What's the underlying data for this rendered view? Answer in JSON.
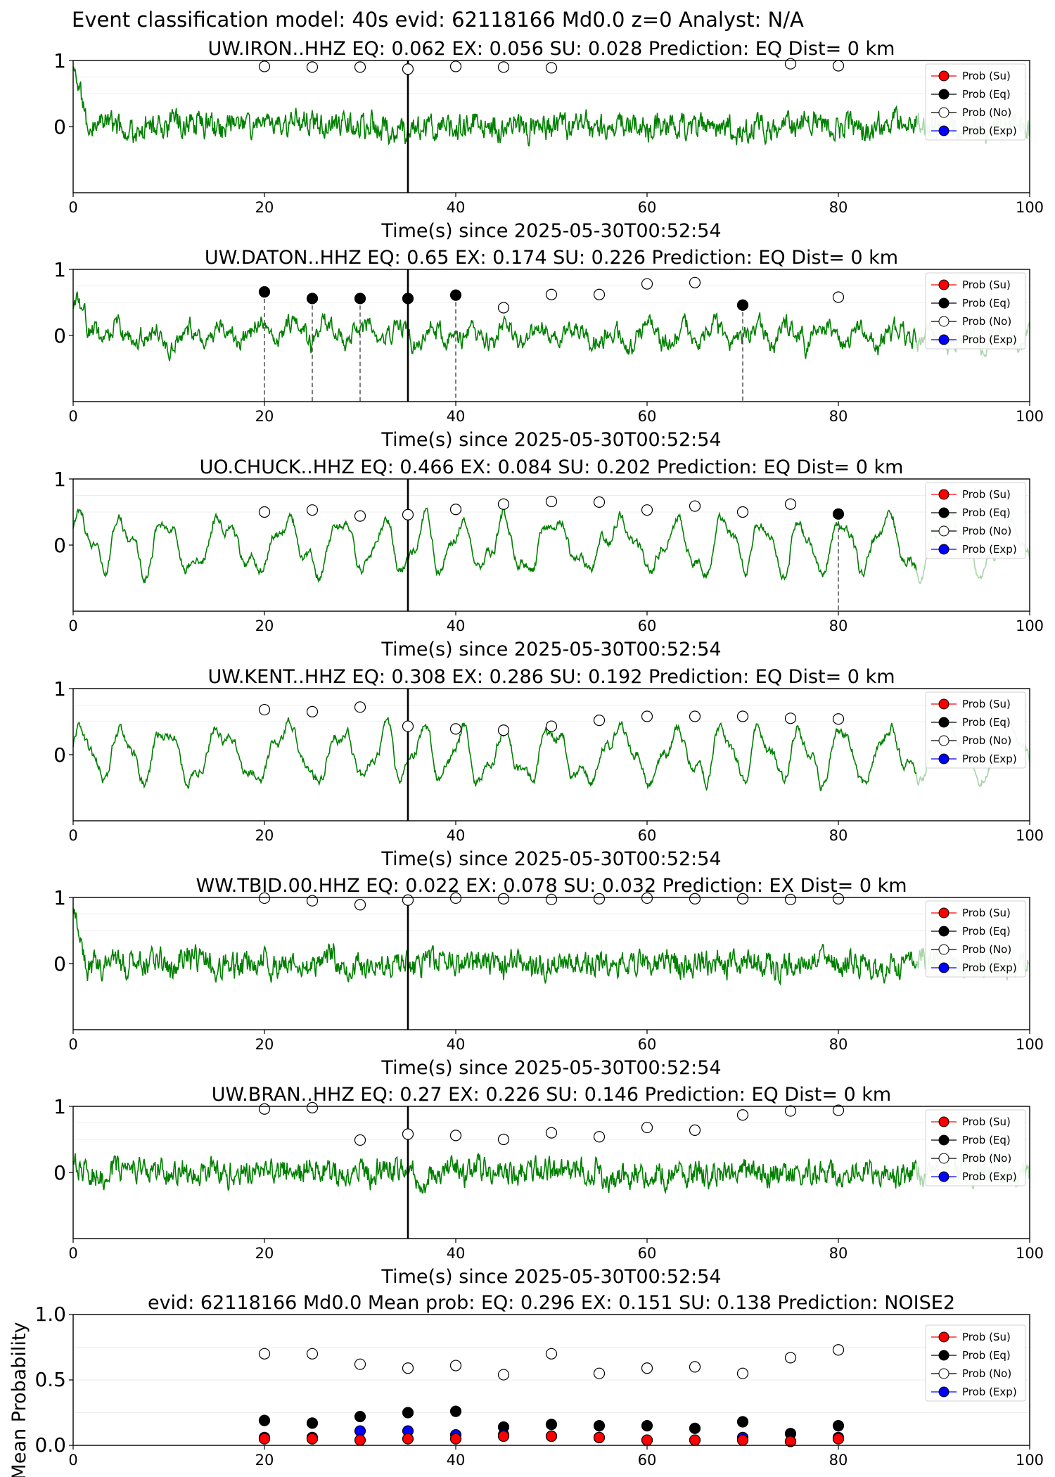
{
  "figure_title": "Event classification model: 40s evid: 62118166 Md0.0 z=0 Analyst: N/A",
  "legend": [
    "Prob (Su)",
    "Prob (Eq)",
    "Prob (No)",
    "Prob (Exp)"
  ],
  "colors": {
    "su": "#ff0000",
    "eq": "#000000",
    "no": "#ffffff",
    "exp": "#0000ff",
    "trace": "#008000",
    "trace_light": "#a8d5a8"
  },
  "chart_data": [
    {
      "type": "line",
      "title": "UW.IRON..HHZ   EQ: 0.062  EX: 0.056  SU: 0.028   Prediction: EQ    Dist= 0 km",
      "xlabel": "Time(s) since 2025-05-30T00:52:54",
      "xlim": [
        0,
        100
      ],
      "xticks": [
        "0",
        "20",
        "40",
        "60",
        "80",
        "100"
      ],
      "ylim": [
        -1,
        1
      ],
      "yticks": [
        "1",
        "0"
      ],
      "vline": 35,
      "trace": {
        "style": "noisy",
        "start_spike": 0.8,
        "seed": 3
      },
      "prob_points": {
        "x": [
          20,
          25,
          30,
          35,
          40,
          45,
          50,
          75,
          80
        ],
        "values": [
          0.91,
          0.9,
          0.9,
          0.87,
          0.91,
          0.9,
          0.89,
          0.95,
          0.92
        ],
        "category": "no"
      },
      "eq_markers": []
    },
    {
      "type": "line",
      "title": "UW.DATON..HHZ   EQ: 0.65  EX: 0.174  SU: 0.226   Prediction: EQ    Dist= 0 km",
      "xlabel": "Time(s) since 2025-05-30T00:52:54",
      "xlim": [
        0,
        100
      ],
      "xticks": [
        "0",
        "20",
        "40",
        "60",
        "80",
        "100"
      ],
      "ylim": [
        -1,
        1
      ],
      "yticks": [
        "1",
        "0"
      ],
      "vline": 35,
      "trace": {
        "style": "mixed",
        "start_spike": 0.5,
        "seed": 11
      },
      "prob_points": {
        "x": [
          45,
          50,
          55,
          60,
          65,
          80
        ],
        "values": [
          0.42,
          0.62,
          0.62,
          0.78,
          0.8,
          0.58
        ],
        "category": "no"
      },
      "eq_markers": [
        {
          "x": 20,
          "value": 0.66
        },
        {
          "x": 25,
          "value": 0.56
        },
        {
          "x": 30,
          "value": 0.56
        },
        {
          "x": 35,
          "value": 0.56
        },
        {
          "x": 40,
          "value": 0.61
        },
        {
          "x": 70,
          "value": 0.46
        }
      ]
    },
    {
      "type": "line",
      "title": "UO.CHUCK..HHZ   EQ: 0.466  EX: 0.084  SU: 0.202   Prediction: EQ    Dist= 0 km",
      "xlabel": "Time(s) since 2025-05-30T00:52:54",
      "xlim": [
        0,
        100
      ],
      "xticks": [
        "0",
        "20",
        "40",
        "60",
        "80",
        "100"
      ],
      "ylim": [
        -1,
        1
      ],
      "yticks": [
        "1",
        "0"
      ],
      "vline": 35,
      "trace": {
        "style": "oscillatory",
        "start_spike": 0.2,
        "seed": 21
      },
      "prob_points": {
        "x": [
          20,
          25,
          30,
          35,
          40,
          45,
          50,
          55,
          60,
          65,
          70,
          75
        ],
        "values": [
          0.5,
          0.53,
          0.44,
          0.46,
          0.54,
          0.62,
          0.66,
          0.65,
          0.53,
          0.59,
          0.5,
          0.62
        ],
        "category": "no"
      },
      "eq_markers": [
        {
          "x": 80,
          "value": 0.47
        }
      ]
    },
    {
      "type": "line",
      "title": "UW.KENT..HHZ   EQ: 0.308  EX: 0.286  SU: 0.192   Prediction: EQ    Dist= 0 km",
      "xlabel": "Time(s) since 2025-05-30T00:52:54",
      "xlim": [
        0,
        100
      ],
      "xticks": [
        "0",
        "20",
        "40",
        "60",
        "80",
        "100"
      ],
      "ylim": [
        -1,
        1
      ],
      "yticks": [
        "1",
        "0"
      ],
      "vline": 35,
      "trace": {
        "style": "oscillatory",
        "start_spike": 0.1,
        "seed": 31
      },
      "prob_points": {
        "x": [
          20,
          25,
          30,
          35,
          40,
          45,
          50,
          55,
          60,
          65,
          70,
          75,
          80
        ],
        "values": [
          0.68,
          0.65,
          0.72,
          0.43,
          0.39,
          0.37,
          0.43,
          0.52,
          0.58,
          0.58,
          0.58,
          0.55,
          0.54
        ],
        "category": "no"
      },
      "eq_markers": []
    },
    {
      "type": "line",
      "title": "WW.TBID.00.HHZ   EQ: 0.022  EX: 0.078  SU: 0.032   Prediction: EX    Dist= 0 km",
      "xlabel": "Time(s) since 2025-05-30T00:52:54",
      "xlim": [
        0,
        100
      ],
      "xticks": [
        "0",
        "20",
        "40",
        "60",
        "80",
        "100"
      ],
      "ylim": [
        -1,
        1
      ],
      "yticks": [
        "1",
        "0"
      ],
      "vline": 35,
      "trace": {
        "style": "noisy",
        "start_spike": 0.9,
        "seed": 41
      },
      "prob_points": {
        "x": [
          20,
          25,
          30,
          35,
          40,
          45,
          50,
          55,
          60,
          65,
          70,
          75,
          80
        ],
        "values": [
          0.99,
          0.95,
          0.89,
          0.96,
          0.99,
          0.98,
          0.97,
          0.98,
          0.99,
          0.98,
          0.98,
          0.97,
          0.98
        ],
        "category": "no"
      },
      "eq_markers": []
    },
    {
      "type": "line",
      "title": "UW.BRAN..HHZ   EQ: 0.27  EX: 0.226  SU: 0.146   Prediction: EQ    Dist= 0 km",
      "xlabel": "Time(s) since 2025-05-30T00:52:54",
      "xlim": [
        0,
        100
      ],
      "xticks": [
        "0",
        "20",
        "40",
        "60",
        "80",
        "100"
      ],
      "ylim": [
        -1,
        1
      ],
      "yticks": [
        "1",
        "0"
      ],
      "vline": 35,
      "trace": {
        "style": "noisy",
        "start_spike": 0.3,
        "seed": 51
      },
      "prob_points": {
        "x": [
          20,
          25,
          30,
          35,
          40,
          45,
          50,
          55,
          60,
          65,
          70,
          75,
          80
        ],
        "values": [
          0.96,
          0.98,
          0.49,
          0.58,
          0.56,
          0.5,
          0.6,
          0.54,
          0.68,
          0.64,
          0.87,
          0.93,
          0.94
        ],
        "category": "no"
      },
      "eq_markers": []
    },
    {
      "type": "scatter",
      "title": "evid: 62118166  Md0.0   Mean prob:   EQ: 0.296  EX: 0.151  SU: 0.138   Prediction: NOISE2",
      "ylabel": "Mean Probability",
      "xlim": [
        0,
        100
      ],
      "xticks": [
        "0",
        "20",
        "40",
        "60",
        "80",
        "100"
      ],
      "ylim": [
        0,
        1
      ],
      "yticks": [
        "0.0",
        "0.5",
        "1.0"
      ],
      "x": [
        20,
        25,
        30,
        35,
        40,
        45,
        50,
        55,
        60,
        65,
        70,
        75,
        80
      ],
      "series": [
        {
          "name": "Prob (No)",
          "key": "no",
          "values": [
            0.7,
            0.7,
            0.62,
            0.59,
            0.61,
            0.54,
            0.7,
            0.55,
            0.59,
            0.6,
            0.55,
            0.67,
            0.73
          ]
        },
        {
          "name": "Prob (Eq)",
          "key": "eq",
          "values": [
            0.19,
            0.17,
            0.22,
            0.25,
            0.26,
            0.14,
            0.16,
            0.15,
            0.15,
            0.13,
            0.18,
            0.09,
            0.15
          ]
        },
        {
          "name": "Prob (Exp)",
          "key": "exp",
          "values": [
            0.06,
            0.06,
            0.11,
            0.11,
            0.08,
            0.08,
            0.07,
            0.06,
            0.04,
            0.04,
            0.06,
            0.03,
            0.06
          ]
        },
        {
          "name": "Prob (Su)",
          "key": "su",
          "values": [
            0.05,
            0.05,
            0.04,
            0.05,
            0.05,
            0.07,
            0.07,
            0.06,
            0.04,
            0.04,
            0.04,
            0.03,
            0.05
          ]
        }
      ]
    }
  ]
}
